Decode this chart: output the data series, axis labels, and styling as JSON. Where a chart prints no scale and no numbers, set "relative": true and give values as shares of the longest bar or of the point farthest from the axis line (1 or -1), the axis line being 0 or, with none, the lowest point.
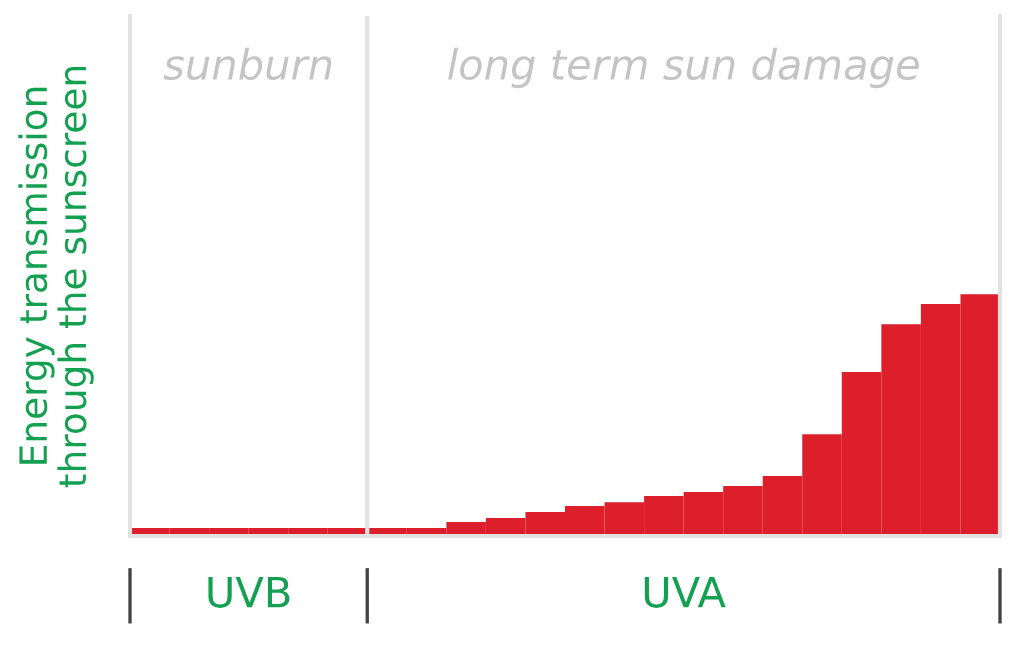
{
  "chart_data": {
    "type": "bar",
    "relative": true,
    "ylabel": "Energy transmission\nthrough the sunscreen",
    "categories": [
      null,
      null,
      null,
      null,
      null,
      null,
      null,
      null,
      null,
      null,
      null,
      null,
      null,
      null,
      null,
      null,
      null,
      null,
      null,
      null,
      null,
      null
    ],
    "values": [
      0.033,
      0.033,
      0.033,
      0.033,
      0.033,
      0.033,
      0.033,
      0.033,
      0.058,
      0.074,
      0.099,
      0.124,
      0.14,
      0.165,
      0.182,
      0.207,
      0.248,
      0.421,
      0.678,
      0.876,
      0.959,
      1
    ],
    "color": "#dc1f2b",
    "annotations": [
      "sunburn",
      "long term sun damage",
      "UVB",
      "UVA"
    ],
    "grid": false
  }
}
